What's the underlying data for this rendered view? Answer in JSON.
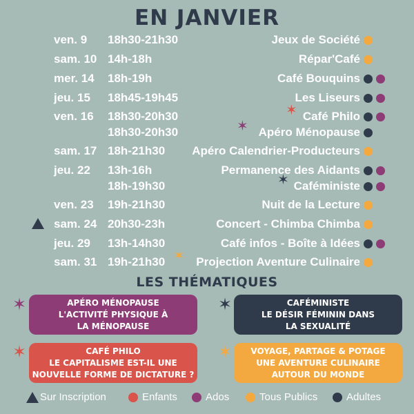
{
  "title": "EN JANVIER",
  "colors": {
    "background": "#a6bab6",
    "dark": "#2f3a4a",
    "orange": "#f4a940",
    "purple": "#8e3c76",
    "red": "#d9544a"
  },
  "events": [
    {
      "day": "ven. 9",
      "time": "18h30-21h30",
      "name": "Jeux de Société",
      "dots": [
        "orange"
      ]
    },
    {
      "day": "sam. 10",
      "time": "14h-18h",
      "name": "Répar'Café",
      "dots": [
        "orange"
      ]
    },
    {
      "day": "mer. 14",
      "time": "18h-19h",
      "name": "Café Bouquins",
      "dots": [
        "dark",
        "purple"
      ]
    },
    {
      "day": "jeu. 15",
      "time": "18h45-19h45",
      "name": "Les Liseurs",
      "dots": [
        "dark",
        "purple"
      ]
    },
    {
      "day": "ven. 16",
      "time": "18h30-20h30",
      "name": "Café Philo",
      "dots": [
        "dark",
        "purple"
      ]
    },
    {
      "day": "",
      "time": "18h30-20h30",
      "name": "Apéro Ménopause",
      "dots": [
        "dark"
      ]
    },
    {
      "day": "sam. 17",
      "time": "18h-21h30",
      "name": "Apéro Calendrier-Producteurs",
      "dots": [
        "orange"
      ]
    },
    {
      "day": "jeu. 22",
      "time": "13h-16h",
      "name": "Permanence des Aidants",
      "dots": [
        "dark",
        "purple"
      ]
    },
    {
      "day": "",
      "time": "18h-19h30",
      "name": "Caféministe",
      "dots": [
        "dark",
        "purple"
      ]
    },
    {
      "day": "ven. 23",
      "time": "19h-21h30",
      "name": "Nuit de la Lecture",
      "dots": [
        "orange"
      ]
    },
    {
      "day": "sam. 24",
      "time": "20h30-23h",
      "name": "Concert - Chimba Chimba",
      "dots": [
        "orange"
      ]
    },
    {
      "day": "jeu. 29",
      "time": "13h-14h30",
      "name": "Café infos - Boîte à Idées",
      "dots": [
        "dark",
        "purple"
      ]
    },
    {
      "day": "sam. 31",
      "time": "19h-21h30",
      "name": "Projection Aventure Culinaire",
      "dots": [
        "orange"
      ]
    }
  ],
  "themes_title": "LES THÉMATIQUES",
  "themes": [
    {
      "lines": [
        "APÉRO MÉNOPAUSE",
        "L'ACTIVITÉ PHYSIQUE À",
        "LA MÉNOPAUSE"
      ],
      "color": "#8e3c76",
      "star": "#8e3c76"
    },
    {
      "lines": [
        "CAFÉMINISTE",
        "LE DÉSIR FÉMININ DANS",
        "LA SEXUALITÉ"
      ],
      "color": "#2f3a4a",
      "star": "#2f3a4a"
    },
    {
      "lines": [
        "CAFÉ PHILO",
        "LE CAPITALISME EST-IL UNE",
        "NOUVELLE FORME DE DICTATURE ?"
      ],
      "color": "#d9544a",
      "star": "#d9544a"
    },
    {
      "lines": [
        "VOYAGE, PARTAGE & POTAGE",
        "UNE AVENTURE CULINAIRE",
        "AUTOUR DU MONDE"
      ],
      "color": "#f4a940",
      "star": "#f4a940"
    }
  ],
  "legend": [
    {
      "label": "Sur Inscription",
      "icon": "triangle-icon",
      "color": "#2f3a4a"
    },
    {
      "label": "Enfants",
      "icon": "dot-icon",
      "color": "#d9544a"
    },
    {
      "label": "Ados",
      "icon": "dot-icon",
      "color": "#8e3c76"
    },
    {
      "label": "Tous Publics",
      "icon": "dot-icon",
      "color": "#f4a940"
    },
    {
      "label": "Adultes",
      "icon": "dot-icon",
      "color": "#2f3a4a"
    }
  ]
}
